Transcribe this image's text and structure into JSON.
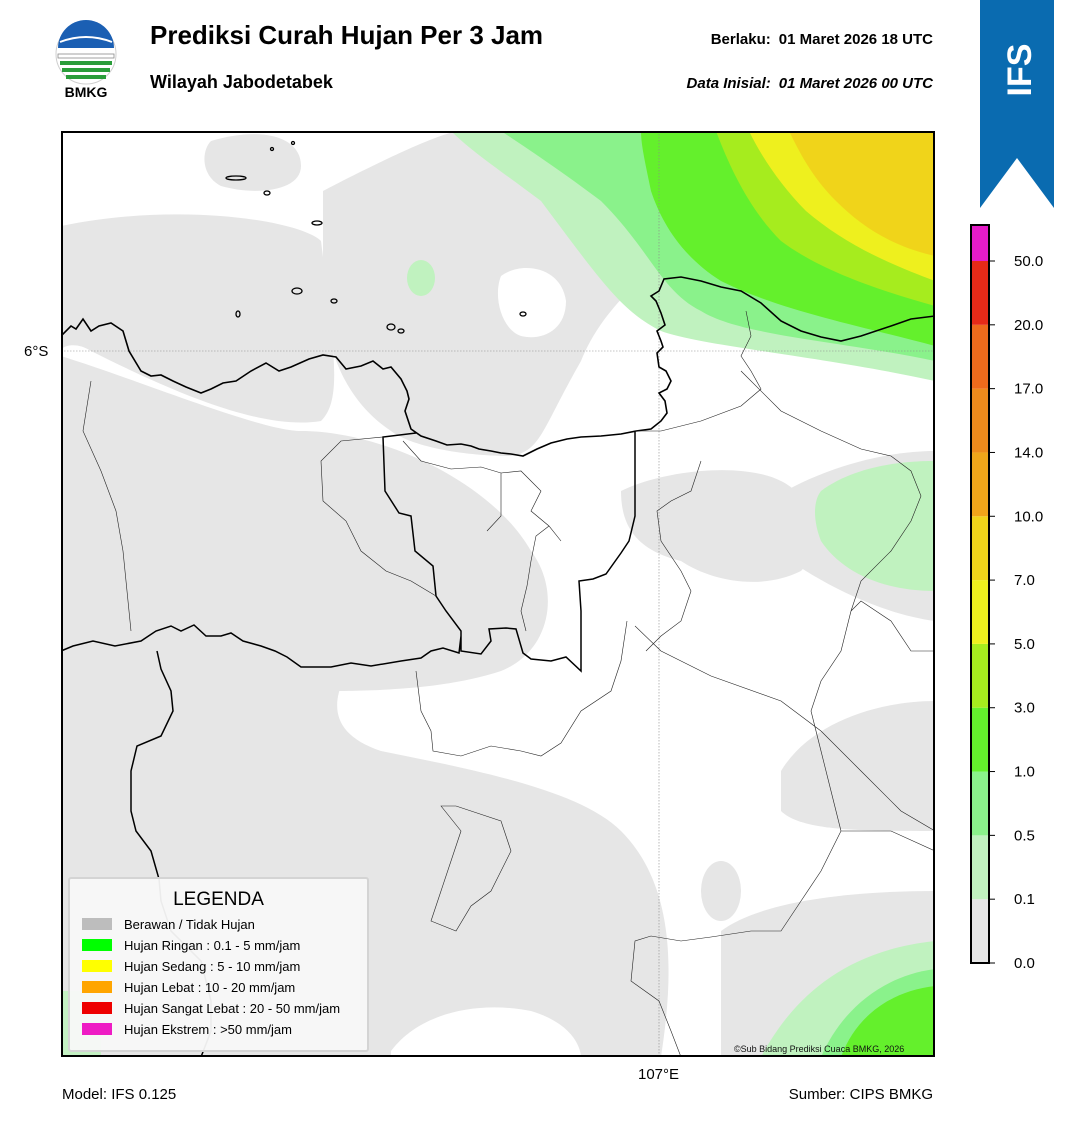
{
  "header": {
    "logo_text": "BMKG",
    "title": "Prediksi Curah Hujan Per 3 Jam",
    "subtitle": "Wilayah Jabodetabek",
    "valid_label": "Berlaku:",
    "valid_value": "01 Maret 2026 18 UTC",
    "init_label": "Data Inisial:",
    "init_value": "01 Maret 2026 00 UTC",
    "badge": "IFS"
  },
  "map": {
    "lat_label": "6°S",
    "lon_label": "107°E",
    "copyright": "©Sub Bidang Prediksi Cuaca BMKG, 2026"
  },
  "legend": {
    "title": "LEGENDA",
    "items": [
      {
        "label": "Berawan / Tidak Hujan",
        "color": "#bdbdbd"
      },
      {
        "label": "Hujan Ringan : 0.1 - 5 mm/jam",
        "color": "#00ff00"
      },
      {
        "label": "Hujan Sedang : 5 - 10 mm/jam",
        "color": "#ffff00"
      },
      {
        "label": "Hujan Lebat : 10 - 20 mm/jam",
        "color": "#ffa500"
      },
      {
        "label": "Hujan Sangat Lebat : 20 - 50 mm/jam",
        "color": "#ee0000"
      },
      {
        "label": "Hujan Ekstrem : >50 mm/jam",
        "color": "#ee1cc4"
      }
    ]
  },
  "colorbar": {
    "ticks": [
      "0.0",
      "0.1",
      "0.5",
      "1.0",
      "3.0",
      "5.0",
      "7.0",
      "10.0",
      "14.0",
      "17.0",
      "20.0",
      "50.0"
    ],
    "colors": [
      "#e6e6e6",
      "#c0f2bf",
      "#8af28b",
      "#64f02c",
      "#a6ec1e",
      "#eef01e",
      "#f0d41a",
      "#f0a51a",
      "#ee8a1c",
      "#ee6a1c",
      "#e62a18",
      "#e61cc8"
    ]
  },
  "footer": {
    "model": "Model: IFS 0.125",
    "source": "Sumber: CIPS BMKG"
  }
}
